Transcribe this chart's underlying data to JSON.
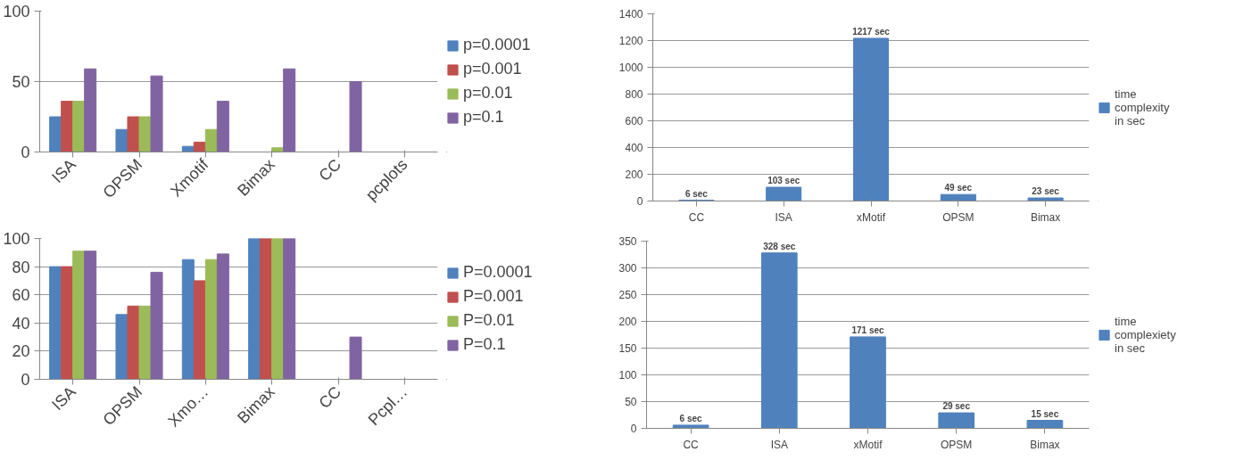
{
  "chart_data": [
    {
      "type": "bar",
      "categories": [
        "ISA",
        "OPSM",
        "Xmotif",
        "Bimax",
        "CC",
        "pcplots"
      ],
      "ylim": [
        0,
        100
      ],
      "yticks": [
        0,
        50,
        100
      ],
      "grid": "y",
      "legend": "right",
      "series": [
        {
          "name": "p=0.0001",
          "color": "#4f81bd",
          "values": [
            25,
            16,
            4,
            0,
            0,
            0
          ]
        },
        {
          "name": "p=0.001",
          "color": "#c0504d",
          "values": [
            36,
            25,
            7,
            0,
            0,
            0
          ]
        },
        {
          "name": "p=0.01",
          "color": "#9bbb59",
          "values": [
            36,
            25,
            16,
            3,
            0,
            0
          ]
        },
        {
          "name": "p=0.1",
          "color": "#8064a2",
          "values": [
            59,
            54,
            36,
            59,
            50,
            0
          ]
        }
      ]
    },
    {
      "type": "bar",
      "categories": [
        "CC",
        "ISA",
        "xMotif",
        "OPSM",
        "Bimax"
      ],
      "ylim": [
        0,
        1400
      ],
      "yticks": [
        0,
        200,
        400,
        600,
        800,
        1000,
        1200,
        1400
      ],
      "grid": "y",
      "legend": "right",
      "series": [
        {
          "name": "time complexity in sec",
          "color": "#4f81bd",
          "values": [
            6,
            103,
            1217,
            49,
            23
          ],
          "value_labels": [
            "6 sec",
            "103 sec",
            "1217 sec",
            "49 sec",
            "23 sec"
          ]
        }
      ]
    },
    {
      "type": "bar",
      "categories": [
        "ISA",
        "OPSM",
        "Xmo…",
        "Bimax",
        "CC",
        "Pcpl…"
      ],
      "ylim": [
        0,
        100
      ],
      "yticks": [
        0,
        20,
        40,
        60,
        80,
        100
      ],
      "grid": "y",
      "legend": "right",
      "series": [
        {
          "name": "P=0.0001",
          "color": "#4f81bd",
          "values": [
            80,
            46,
            85,
            100,
            0,
            0
          ]
        },
        {
          "name": "P=0.001",
          "color": "#c0504d",
          "values": [
            80,
            52,
            70,
            100,
            0,
            0
          ]
        },
        {
          "name": "P=0.01",
          "color": "#9bbb59",
          "values": [
            91,
            52,
            85,
            100,
            0,
            0
          ]
        },
        {
          "name": "P=0.1",
          "color": "#8064a2",
          "values": [
            91,
            76,
            89,
            100,
            30,
            0
          ]
        }
      ]
    },
    {
      "type": "bar",
      "categories": [
        "CC",
        "ISA",
        "xMotif",
        "OPSM",
        "Bimax"
      ],
      "ylim": [
        0,
        350
      ],
      "yticks": [
        0,
        50,
        100,
        150,
        200,
        250,
        300,
        350
      ],
      "grid": "y",
      "legend": "right",
      "series": [
        {
          "name": "time complexiety in sec",
          "color": "#4f81bd",
          "values": [
            6,
            328,
            171,
            29,
            15
          ],
          "value_labels": [
            "6 sec",
            "328 sec",
            "171 sec",
            "29 sec",
            "15 sec"
          ]
        }
      ]
    }
  ]
}
